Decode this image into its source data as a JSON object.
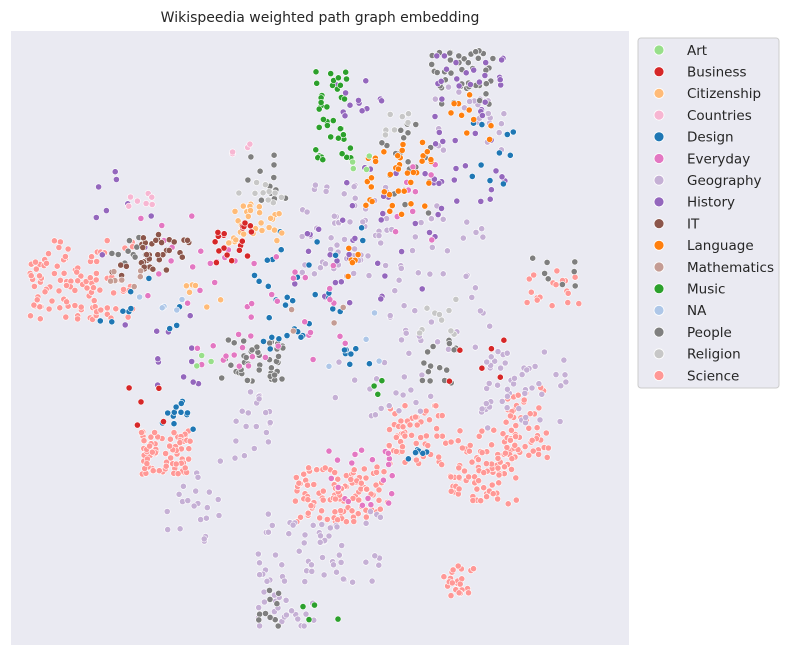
{
  "chart_data": {
    "type": "scatter",
    "title": "Wikispeedia weighted path graph embedding",
    "xlabel": "",
    "ylabel": "",
    "axes_visible": false,
    "ticks_visible": false,
    "grid": false,
    "background_color": "#eaeaf2",
    "legend": {
      "placement": "outside-right-top",
      "title": ""
    },
    "xlim": [
      0,
      100
    ],
    "ylim": [
      0,
      100
    ],
    "categories": [
      "Art",
      "Business",
      "Citizenship",
      "Countries",
      "Design",
      "Everyday",
      "Geography",
      "History",
      "IT",
      "Language",
      "Mathematics",
      "Music",
      "NA",
      "People",
      "Religion",
      "Science"
    ],
    "colors": {
      "Art": "#98df8a",
      "Business": "#d62728",
      "Citizenship": "#ffbb78",
      "Countries": "#f7b6d2",
      "Design": "#1f77b4",
      "Everyday": "#e377c2",
      "Geography": "#c5b0d5",
      "History": "#9467bd",
      "IT": "#8c564b",
      "Language": "#ff7f0e",
      "Mathematics": "#c49c94",
      "Music": "#2ca02c",
      "NA": "#aec7e8",
      "People": "#7f7f7f",
      "Religion": "#c7c7c7",
      "Science": "#ff9896"
    },
    "series": [
      {
        "name": "Science",
        "clusters": [
          {
            "x": [
              3,
              14
            ],
            "y": [
              53,
              63
            ],
            "n": 70
          },
          {
            "x": [
              13,
              20
            ],
            "y": [
              53,
              60
            ],
            "n": 22
          },
          {
            "x": [
              21,
              29
            ],
            "y": [
              27,
              35
            ],
            "n": 75
          },
          {
            "x": [
              46,
              61
            ],
            "y": [
              20,
              29
            ],
            "n": 110
          },
          {
            "x": [
              61,
              70
            ],
            "y": [
              29,
              39
            ],
            "n": 55
          },
          {
            "x": [
              70,
              82
            ],
            "y": [
              23,
              35
            ],
            "n": 85
          },
          {
            "x": [
              80,
              87
            ],
            "y": [
              30,
              42
            ],
            "n": 50
          },
          {
            "x": [
              70,
              75
            ],
            "y": [
              8,
              13
            ],
            "n": 22
          },
          {
            "x": [
              83,
              92
            ],
            "y": [
              55,
              62
            ],
            "n": 18
          },
          {
            "x": [
              6,
              20
            ],
            "y": [
              63,
              66
            ],
            "n": 14
          }
        ]
      },
      {
        "name": "Geography",
        "clusters": [
          {
            "x": [
              40,
              60
            ],
            "y": [
              10,
              22
            ],
            "n": 60
          },
          {
            "x": [
              40,
              49
            ],
            "y": [
              3,
              9
            ],
            "n": 25
          },
          {
            "x": [
              47,
              61
            ],
            "y": [
              60,
              75
            ],
            "n": 60
          },
          {
            "x": [
              61,
              78
            ],
            "y": [
              48,
              72
            ],
            "n": 45
          },
          {
            "x": [
              76,
              90
            ],
            "y": [
              35,
              48
            ],
            "n": 50
          },
          {
            "x": [
              25,
              35
            ],
            "y": [
              15,
              30
            ],
            "n": 22
          },
          {
            "x": [
              36,
              42
            ],
            "y": [
              30,
              42
            ],
            "n": 20
          },
          {
            "x": [
              68,
              80
            ],
            "y": [
              80,
              92
            ],
            "n": 25
          },
          {
            "x": [
              52,
              68
            ],
            "y": [
              36,
              48
            ],
            "n": 20
          }
        ]
      },
      {
        "name": "People",
        "clusters": [
          {
            "x": [
              34,
              44
            ],
            "y": [
              43,
              50
            ],
            "n": 42
          },
          {
            "x": [
              68,
              78
            ],
            "y": [
              88,
              97
            ],
            "n": 42
          },
          {
            "x": [
              60,
              68
            ],
            "y": [
              70,
              85
            ],
            "n": 20
          },
          {
            "x": [
              16,
              22
            ],
            "y": [
              62,
              67
            ],
            "n": 10
          },
          {
            "x": [
              40,
              45
            ],
            "y": [
              3,
              9
            ],
            "n": 10
          },
          {
            "x": [
              66,
              72
            ],
            "y": [
              42,
              50
            ],
            "n": 15
          },
          {
            "x": [
              83,
              92
            ],
            "y": [
              58,
              63
            ],
            "n": 8
          },
          {
            "x": [
              38,
              45
            ],
            "y": [
              72,
              80
            ],
            "n": 12
          }
        ]
      },
      {
        "name": "History",
        "clusters": [
          {
            "x": [
              68,
              80
            ],
            "y": [
              72,
              96
            ],
            "n": 45
          },
          {
            "x": [
              45,
              70
            ],
            "y": [
              55,
              78
            ],
            "n": 40
          },
          {
            "x": [
              52,
              60
            ],
            "y": [
              85,
              92
            ],
            "n": 12
          },
          {
            "x": [
              18,
              32
            ],
            "y": [
              42,
              55
            ],
            "n": 12
          },
          {
            "x": [
              12,
              25
            ],
            "y": [
              62,
              78
            ],
            "n": 10
          }
        ]
      },
      {
        "name": "Design",
        "clusters": [
          {
            "x": [
              38,
              58
            ],
            "y": [
              45,
              68
            ],
            "n": 40
          },
          {
            "x": [
              24,
              30
            ],
            "y": [
              35,
              40
            ],
            "n": 12
          },
          {
            "x": [
              62,
              68
            ],
            "y": [
              30,
              33
            ],
            "n": 6
          },
          {
            "x": [
              14,
              28
            ],
            "y": [
              50,
              60
            ],
            "n": 10
          },
          {
            "x": [
              74,
              82
            ],
            "y": [
              75,
              85
            ],
            "n": 10
          }
        ]
      },
      {
        "name": "Everyday",
        "clusters": [
          {
            "x": [
              30,
              55
            ],
            "y": [
              45,
              65
            ],
            "n": 42
          },
          {
            "x": [
              51,
              62
            ],
            "y": [
              22,
              32
            ],
            "n": 22
          },
          {
            "x": [
              20,
              30
            ],
            "y": [
              55,
              70
            ],
            "n": 10
          },
          {
            "x": [
              62,
              72
            ],
            "y": [
              65,
              80
            ],
            "n": 10
          }
        ]
      },
      {
        "name": "Language",
        "clusters": [
          {
            "x": [
              57,
              68
            ],
            "y": [
              70,
              82
            ],
            "n": 38
          },
          {
            "x": [
              70,
              78
            ],
            "y": [
              82,
              90
            ],
            "n": 10
          },
          {
            "x": [
              50,
              58
            ],
            "y": [
              58,
              65
            ],
            "n": 6
          }
        ]
      },
      {
        "name": "Music",
        "clusters": [
          {
            "x": [
              49,
              55
            ],
            "y": [
              79,
              95
            ],
            "n": 38
          },
          {
            "x": [
              47,
              53
            ],
            "y": [
              4,
              8
            ],
            "n": 4
          },
          {
            "x": [
              58,
              62
            ],
            "y": [
              40,
              44
            ],
            "n": 4
          }
        ]
      },
      {
        "name": "Citizenship",
        "clusters": [
          {
            "x": [
              35,
              44
            ],
            "y": [
              65,
              72
            ],
            "n": 30
          },
          {
            "x": [
              28,
              35
            ],
            "y": [
              55,
              62
            ],
            "n": 6
          }
        ]
      },
      {
        "name": "IT",
        "clusters": [
          {
            "x": [
              21,
              29
            ],
            "y": [
              61,
              67
            ],
            "n": 32
          },
          {
            "x": [
              16,
              19
            ],
            "y": [
              60,
              62
            ],
            "n": 4
          }
        ]
      },
      {
        "name": "Business",
        "clusters": [
          {
            "x": [
              33,
              39
            ],
            "y": [
              61,
              69
            ],
            "n": 20
          },
          {
            "x": [
              70,
              80
            ],
            "y": [
              40,
              50
            ],
            "n": 6
          },
          {
            "x": [
              18,
              26
            ],
            "y": [
              35,
              42
            ],
            "n": 5
          }
        ]
      },
      {
        "name": "Religion",
        "clusters": [
          {
            "x": [
              36,
              44
            ],
            "y": [
              70,
              76
            ],
            "n": 10
          },
          {
            "x": [
              66,
              72
            ],
            "y": [
              50,
              57
            ],
            "n": 10
          },
          {
            "x": [
              60,
              66
            ],
            "y": [
              82,
              88
            ],
            "n": 8
          }
        ]
      },
      {
        "name": "Mathematics",
        "clusters": [
          {
            "x": [
              15,
              21
            ],
            "y": [
              58,
              62
            ],
            "n": 7
          },
          {
            "x": [
              45,
              55
            ],
            "y": [
              50,
              55
            ],
            "n": 4
          }
        ]
      },
      {
        "name": "Countries",
        "clusters": [
          {
            "x": [
              19,
              23
            ],
            "y": [
              71,
              74
            ],
            "n": 7
          },
          {
            "x": [
              35,
              40
            ],
            "y": [
              78,
              82
            ],
            "n": 4
          }
        ]
      },
      {
        "name": "NA",
        "clusters": [
          {
            "x": [
              20,
              28
            ],
            "y": [
              53,
              57
            ],
            "n": 5
          },
          {
            "x": [
              50,
              60
            ],
            "y": [
              45,
              55
            ],
            "n": 4
          }
        ]
      },
      {
        "name": "Art",
        "clusters": [
          {
            "x": [
              54,
              58
            ],
            "y": [
              77,
              80
            ],
            "n": 4
          },
          {
            "x": [
              30,
              34
            ],
            "y": [
              45,
              48
            ],
            "n": 3
          }
        ]
      }
    ]
  }
}
